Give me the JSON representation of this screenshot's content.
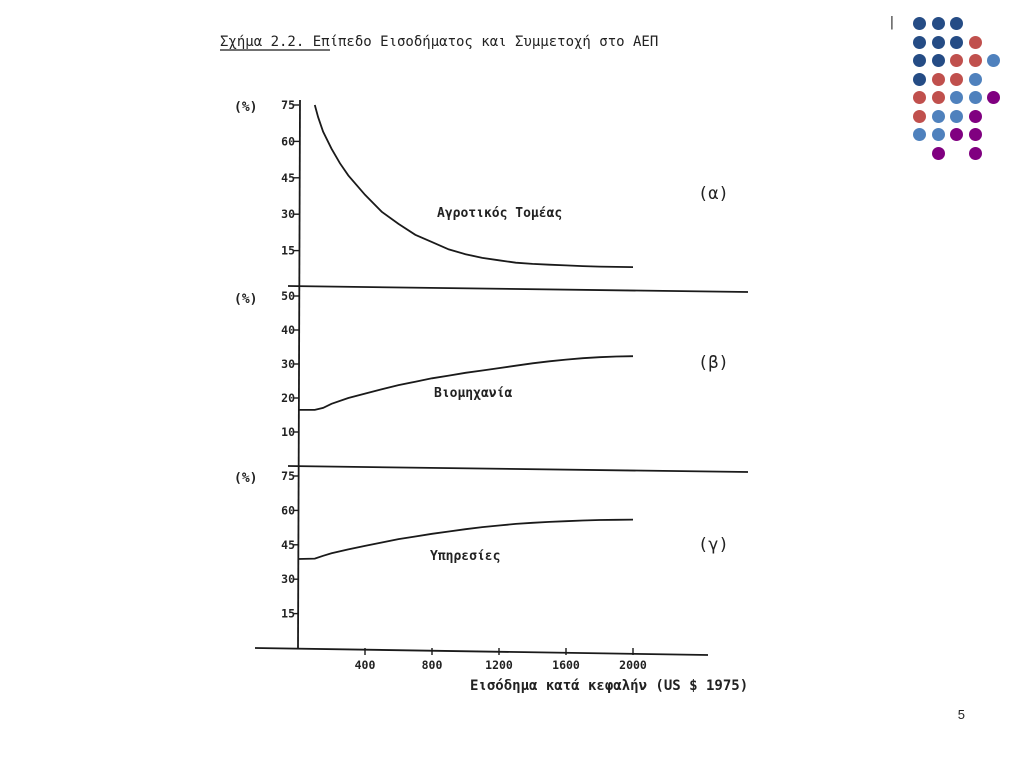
{
  "slide": {
    "page_number": "5",
    "caption_mark": "|"
  },
  "decor": {
    "rows": [
      [
        "navy",
        "navy",
        "navy"
      ],
      [
        "navy",
        "navy",
        "navy",
        "red"
      ],
      [
        "navy",
        "navy",
        "red",
        "red",
        "steel"
      ],
      [
        "navy",
        "red",
        "red",
        "steel"
      ],
      [
        "red",
        "red",
        "steel",
        "steel",
        "purple"
      ],
      [
        "red",
        "steel",
        "steel",
        "purple"
      ],
      [
        "steel",
        "steel",
        "purple",
        "purple"
      ],
      [
        "",
        "purple",
        "",
        "purple"
      ]
    ],
    "colors": {
      "navy": "#254c85",
      "red": "#c0504d",
      "steel": "#4f81bd",
      "purple": "#800080"
    }
  },
  "chart_data": {
    "type": "line",
    "title": "Σχήμα 2.2.    Επίπεδο Εισοδήματος και Συμμετοχή στο ΑΕΠ",
    "xlabel": "Εισόδημα κατά κεφαλήν (US $ 1975)",
    "x_ticks": [
      400,
      800,
      1200,
      1600,
      2000
    ],
    "xlim": [
      0,
      2400
    ],
    "panels": [
      {
        "id": "a",
        "tag": "(α)",
        "series_name": "Αγροτικός Τομέας",
        "unit": "(%)",
        "ylim": [
          0,
          75
        ],
        "y_ticks": [
          15,
          30,
          45,
          60,
          75
        ],
        "x": [
          100,
          120,
          150,
          200,
          250,
          300,
          350,
          400,
          500,
          600,
          700,
          800,
          900,
          1000,
          1100,
          1200,
          1300,
          1400,
          1500,
          1600,
          1700,
          1800,
          1900,
          2000
        ],
        "y": [
          75,
          70,
          64,
          57,
          51,
          46,
          42,
          38,
          31,
          26,
          21.5,
          18.5,
          15.5,
          13.5,
          12,
          11,
          10,
          9.5,
          9.2,
          8.9,
          8.6,
          8.4,
          8.3,
          8.2
        ]
      },
      {
        "id": "b",
        "tag": "(β)",
        "series_name": "Βιομηχανία",
        "unit": "(%)",
        "ylim": [
          0,
          50
        ],
        "y_ticks": [
          10,
          20,
          30,
          40,
          50
        ],
        "x": [
          0,
          100,
          150,
          200,
          300,
          400,
          500,
          600,
          700,
          800,
          900,
          1000,
          1100,
          1200,
          1300,
          1400,
          1500,
          1600,
          1700,
          1800,
          1900,
          2000
        ],
        "y": [
          16.5,
          16.5,
          17.1,
          18.3,
          20,
          21.3,
          22.6,
          23.8,
          24.8,
          25.8,
          26.6,
          27.4,
          28.1,
          28.8,
          29.5,
          30.2,
          30.8,
          31.3,
          31.7,
          32,
          32.2,
          32.3
        ]
      },
      {
        "id": "c",
        "tag": "(γ)",
        "series_name": "Υπηρεσίες",
        "unit": "(%)",
        "ylim": [
          0,
          75
        ],
        "y_ticks": [
          15,
          30,
          45,
          60,
          75
        ],
        "x": [
          0,
          100,
          150,
          200,
          300,
          400,
          500,
          600,
          700,
          800,
          900,
          1000,
          1100,
          1200,
          1300,
          1400,
          1500,
          1600,
          1700,
          1800,
          1900,
          2000
        ],
        "y": [
          38.8,
          39,
          40.2,
          41.3,
          43,
          44.5,
          46,
          47.5,
          48.6,
          49.8,
          50.8,
          51.8,
          52.7,
          53.4,
          54.1,
          54.6,
          55,
          55.3,
          55.6,
          55.8,
          55.9,
          56
        ]
      }
    ]
  }
}
